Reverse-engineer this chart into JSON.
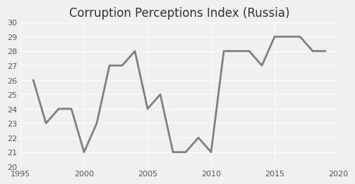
{
  "title": "Corruption Perceptions Index (Russia)",
  "years": [
    1996,
    1997,
    1998,
    1999,
    2000,
    2001,
    2002,
    2003,
    2004,
    2005,
    2006,
    2007,
    2008,
    2009,
    2010,
    2011,
    2012,
    2013,
    2014,
    2015,
    2016,
    2017,
    2018,
    2019
  ],
  "values": [
    26,
    23,
    24,
    24,
    21,
    23,
    27,
    27,
    28,
    24,
    25,
    21,
    21,
    22,
    21,
    28,
    28,
    28,
    27,
    29,
    29,
    29,
    28,
    28
  ],
  "xlim": [
    1995,
    2020
  ],
  "ylim": [
    20,
    30
  ],
  "xticks": [
    1995,
    2000,
    2005,
    2010,
    2015,
    2020
  ],
  "yticks": [
    20,
    21,
    22,
    23,
    24,
    25,
    26,
    27,
    28,
    29,
    30
  ],
  "line_color": "#808080",
  "line_width": 2.0,
  "background_color": "#f0f0f0",
  "plot_bg_color": "#f0f0f0",
  "grid_color": "#ffffff",
  "title_fontsize": 12,
  "tick_fontsize": 8,
  "tick_color": "#555555",
  "title_color": "#333333"
}
